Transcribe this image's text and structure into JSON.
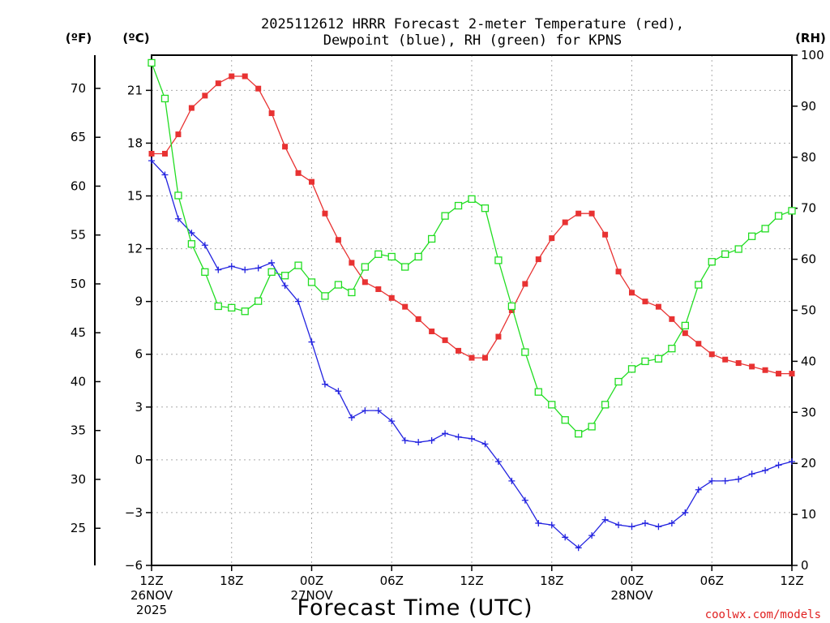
{
  "chart_data": {
    "type": "line",
    "title_line1": "2025112612 HRRR Forecast 2-meter Temperature (red),",
    "title_line2": "Dewpoint (blue), RH (green) for KPNS",
    "xlabel": "Forecast Time (UTC)",
    "credit": "coolwx.com/models",
    "x_hours": [
      0,
      1,
      2,
      3,
      4,
      5,
      6,
      7,
      8,
      9,
      10,
      11,
      12,
      13,
      14,
      15,
      16,
      17,
      18,
      19,
      20,
      21,
      22,
      23,
      24,
      25,
      26,
      27,
      28,
      29,
      30,
      31,
      32,
      33,
      34,
      35,
      36,
      37,
      38,
      39,
      40,
      41,
      42,
      43,
      44,
      45,
      46,
      47,
      48
    ],
    "x_ticks": [
      {
        "hour": 0,
        "label": "12Z",
        "sub1": "26NOV",
        "sub2": "2025"
      },
      {
        "hour": 6,
        "label": "18Z",
        "sub1": "",
        "sub2": ""
      },
      {
        "hour": 12,
        "label": "00Z",
        "sub1": "27NOV",
        "sub2": ""
      },
      {
        "hour": 18,
        "label": "06Z",
        "sub1": "",
        "sub2": ""
      },
      {
        "hour": 24,
        "label": "12Z",
        "sub1": "",
        "sub2": ""
      },
      {
        "hour": 30,
        "label": "18Z",
        "sub1": "",
        "sub2": ""
      },
      {
        "hour": 36,
        "label": "00Z",
        "sub1": "28NOV",
        "sub2": ""
      },
      {
        "hour": 42,
        "label": "06Z",
        "sub1": "",
        "sub2": ""
      },
      {
        "hour": 48,
        "label": "12Z",
        "sub1": "",
        "sub2": ""
      }
    ],
    "y_celsius": {
      "unit": "(ºC)",
      "range": [
        -6,
        23
      ],
      "ticks": [
        -6,
        -3,
        0,
        3,
        6,
        9,
        12,
        15,
        18,
        21
      ]
    },
    "y_fahrenheit": {
      "unit": "(ºF)",
      "ticks": [
        25,
        30,
        35,
        40,
        45,
        50,
        55,
        60,
        65,
        70
      ]
    },
    "y_rh": {
      "unit": "(RH)",
      "range": [
        0,
        100
      ],
      "ticks": [
        0,
        10,
        20,
        30,
        40,
        50,
        60,
        70,
        80,
        90,
        100
      ]
    },
    "series": [
      {
        "name": "Temperature",
        "color": "#e83232",
        "marker": "filled-square",
        "axis": "celsius",
        "values": [
          17.4,
          17.4,
          18.5,
          20.0,
          20.7,
          21.4,
          21.8,
          21.8,
          21.1,
          19.7,
          17.8,
          16.3,
          15.8,
          14.0,
          12.5,
          11.2,
          10.1,
          9.7,
          9.2,
          8.7,
          8.0,
          7.3,
          6.8,
          6.2,
          5.8,
          5.8,
          7.0,
          8.5,
          10.0,
          11.4,
          12.6,
          13.5,
          14.0,
          14.0,
          12.8,
          10.7,
          9.5,
          9.0,
          8.7,
          8.0,
          7.2,
          6.6,
          6.0,
          5.7,
          5.5,
          5.3,
          5.1,
          4.9,
          4.9
        ]
      },
      {
        "name": "Dewpoint",
        "color": "#2323e0",
        "marker": "plus",
        "axis": "celsius",
        "values": [
          17.0,
          16.2,
          13.7,
          12.9,
          12.2,
          10.8,
          11.0,
          10.8,
          10.9,
          11.2,
          9.9,
          9.0,
          6.7,
          4.3,
          3.9,
          2.4,
          2.8,
          2.8,
          2.2,
          1.1,
          1.0,
          1.1,
          1.5,
          1.3,
          1.2,
          0.9,
          -0.1,
          -1.2,
          -2.3,
          -3.6,
          -3.7,
          -4.4,
          -5.0,
          -4.3,
          -3.4,
          -3.7,
          -3.8,
          -3.6,
          -3.8,
          -3.6,
          -3.0,
          -1.7,
          -1.2,
          -1.2,
          -1.1,
          -0.8,
          -0.6,
          -0.3,
          -0.1
        ]
      },
      {
        "name": "RH",
        "color": "#22dd22",
        "marker": "open-square",
        "axis": "rh",
        "values": [
          98.5,
          91.5,
          72.5,
          63.0,
          57.5,
          50.8,
          50.5,
          49.8,
          51.8,
          57.5,
          56.8,
          58.8,
          55.5,
          52.8,
          55.0,
          53.5,
          58.5,
          61.0,
          60.5,
          58.5,
          60.5,
          64.0,
          68.5,
          70.5,
          71.8,
          70.0,
          59.8,
          50.8,
          41.8,
          34.0,
          31.5,
          28.5,
          25.8,
          27.2,
          31.5,
          36.0,
          38.5,
          40.0,
          40.5,
          42.5,
          47.0,
          55.0,
          59.5,
          61.0,
          62.0,
          64.5,
          66.0,
          68.5,
          69.5
        ]
      }
    ]
  }
}
